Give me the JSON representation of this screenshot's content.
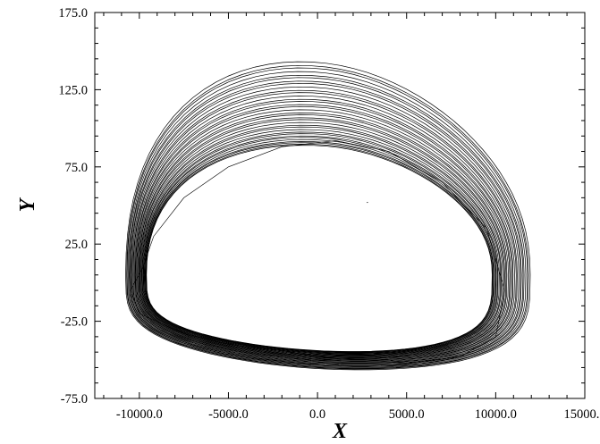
{
  "chart_data": {
    "type": "line",
    "title": "",
    "xlabel": "X",
    "ylabel": "Y",
    "xlim": [
      -12500,
      15000
    ],
    "ylim": [
      -75,
      175
    ],
    "grid": false,
    "legend": "none",
    "line_color": "#000000",
    "x_ticks": [
      -10000,
      -5000,
      0,
      5000,
      10000,
      15000
    ],
    "y_ticks": [
      -75,
      -25,
      25,
      75,
      125,
      175
    ],
    "x_tick_labels": [
      "-10000.0",
      "-5000.0",
      "0.0",
      "5000.0",
      "10000.0",
      "15000.0"
    ],
    "y_tick_labels": [
      "-75.0",
      "-25.0",
      "25.0",
      "75.0",
      "125.0",
      "175.0"
    ],
    "series": [
      {
        "description_points": "closed attractor loop traced many times; representative path",
        "x": [
          -9800,
          -10500,
          -10000,
          -7500,
          -5000,
          -2000,
          0,
          2500,
          5000,
          8000,
          10000,
          10500,
          9500,
          7000,
          4000,
          1000,
          -2000,
          -5000,
          -7500,
          -9200,
          -9800
        ],
        "y": [
          10,
          -5,
          -20,
          -33,
          -40,
          -44,
          -48,
          -50,
          -52,
          -48,
          -35,
          -5,
          35,
          65,
          85,
          92,
          88,
          75,
          55,
          30,
          10
        ]
      }
    ]
  }
}
